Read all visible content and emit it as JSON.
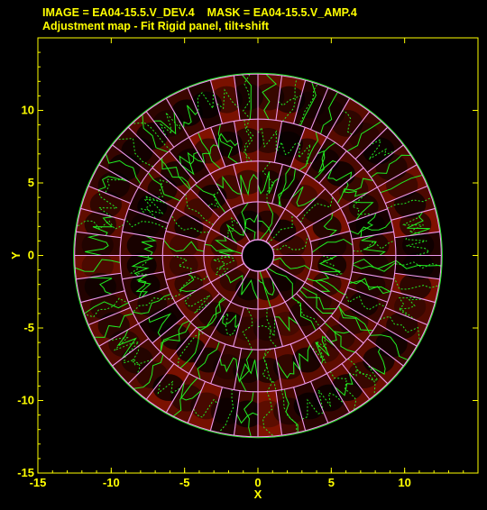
{
  "header": {
    "image_label": "IMAGE = EA04-15.5.V_DEV.4",
    "mask_label": "MASK = EA04-15.5.V_AMP.4",
    "subtitle": "Adjustment map - Fit Rigid panel, tilt+shift"
  },
  "colors": {
    "text": "#ffff00",
    "panel_grid": "#ee99ee",
    "contours": "#22ee22",
    "background": "#000000"
  },
  "chart_data": {
    "type": "heatmap",
    "title": "Adjustment map - Fit Rigid panel, tilt+shift",
    "xlabel": "X",
    "ylabel": "Y",
    "xlim": [
      -15,
      15
    ],
    "ylim": [
      -15,
      15
    ],
    "x_ticks": [
      "-15",
      "-10",
      "-5",
      "0",
      "5",
      "10"
    ],
    "x_tick_values": [
      -15,
      -10,
      -5,
      0,
      5,
      10
    ],
    "y_ticks": [
      "-15",
      "-10",
      "-5",
      "0",
      "5",
      "10"
    ],
    "y_tick_values": [
      -15,
      -10,
      -5,
      0,
      5,
      10
    ],
    "ring_radii": [
      1.1,
      3.7,
      6.5,
      9.4,
      12.5
    ],
    "ring_panel_counts": [
      12,
      24,
      36,
      48
    ],
    "grid": false
  }
}
